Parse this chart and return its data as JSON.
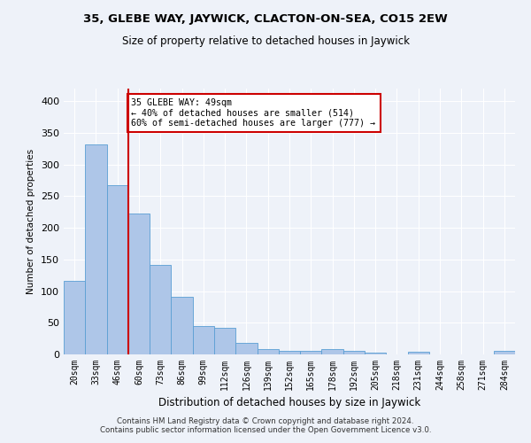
{
  "title": "35, GLEBE WAY, JAYWICK, CLACTON-ON-SEA, CO15 2EW",
  "subtitle": "Size of property relative to detached houses in Jaywick",
  "xlabel": "Distribution of detached houses by size in Jaywick",
  "ylabel": "Number of detached properties",
  "categories": [
    "20sqm",
    "33sqm",
    "46sqm",
    "60sqm",
    "73sqm",
    "86sqm",
    "99sqm",
    "112sqm",
    "126sqm",
    "139sqm",
    "152sqm",
    "165sqm",
    "178sqm",
    "192sqm",
    "205sqm",
    "218sqm",
    "231sqm",
    "244sqm",
    "258sqm",
    "271sqm",
    "284sqm"
  ],
  "values": [
    116,
    332,
    267,
    222,
    141,
    91,
    45,
    42,
    18,
    9,
    6,
    5,
    8,
    6,
    3,
    0,
    4,
    0,
    0,
    0,
    5
  ],
  "bar_color": "#aec6e8",
  "bar_edge_color": "#5a9fd4",
  "vline_color": "#cc0000",
  "vline_x_index": 2,
  "annotation_text": "35 GLEBE WAY: 49sqm\n← 40% of detached houses are smaller (514)\n60% of semi-detached houses are larger (777) →",
  "annotation_box_color": "white",
  "annotation_box_edge_color": "#cc0000",
  "background_color": "#eef2f9",
  "grid_color": "white",
  "footer_text": "Contains HM Land Registry data © Crown copyright and database right 2024.\nContains public sector information licensed under the Open Government Licence v3.0.",
  "ylim": [
    0,
    420
  ],
  "yticks": [
    0,
    50,
    100,
    150,
    200,
    250,
    300,
    350,
    400
  ]
}
